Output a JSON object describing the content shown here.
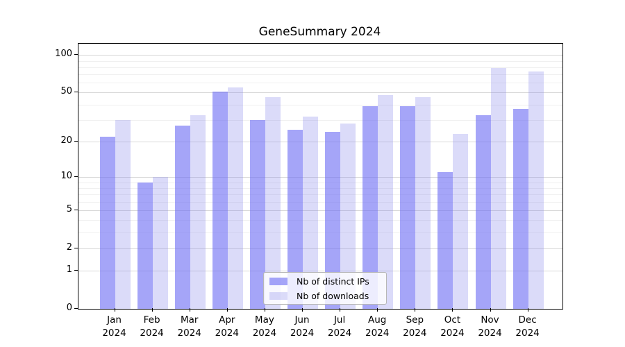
{
  "chart_data": {
    "type": "bar",
    "title": "GeneSummary 2024",
    "categories": [
      "Jan",
      "Feb",
      "Mar",
      "Apr",
      "May",
      "Jun",
      "Jul",
      "Aug",
      "Sep",
      "Oct",
      "Nov",
      "Dec"
    ],
    "year": "2024",
    "series": [
      {
        "name": "Nb of distinct IPs",
        "color": "rgba(110,110,244,0.62)",
        "values": [
          22,
          9,
          27,
          51,
          30,
          25,
          24,
          39,
          39,
          11,
          33,
          37
        ]
      },
      {
        "name": "Nb of downloads",
        "color": "rgba(140,140,235,0.31)",
        "values": [
          30,
          10,
          33,
          55,
          46,
          32,
          28,
          48,
          46,
          23,
          79,
          74
        ]
      }
    ],
    "yscale": "log1p",
    "ylim": [
      0,
      121
    ],
    "y_ticks": [
      100,
      50,
      20,
      10,
      5,
      2,
      1,
      0
    ],
    "y_minor_ticks": [
      90,
      80,
      70,
      60,
      40,
      30,
      9,
      8,
      7,
      6,
      4,
      3
    ],
    "grid": true,
    "legend_position": "bottom-center"
  },
  "colors": {
    "grid_major": "#d7d7d7",
    "grid_minor": "#f0f0f0",
    "spine": "#000000",
    "background": "#ffffff"
  }
}
